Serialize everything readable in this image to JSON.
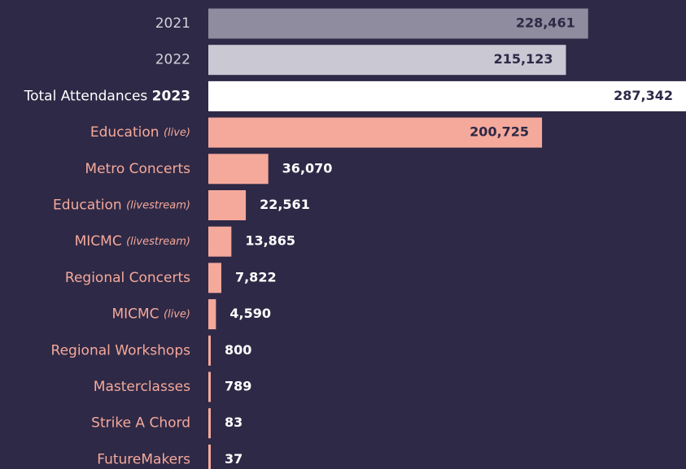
{
  "chart_data": {
    "type": "hbar",
    "categories": [
      "2021",
      "2022",
      "Total Attendances 2023",
      "Education (live)",
      "Metro Concerts",
      "Education (livestream)",
      "MICMC (livestream)",
      "Regional Concerts",
      "MICMC (live)",
      "Regional Workshops",
      "Masterclasses",
      "Strike A Chord",
      "FutureMakers"
    ],
    "values": [
      228461,
      215123,
      287342,
      200725,
      36070,
      22561,
      13865,
      7822,
      4590,
      800,
      789,
      83,
      37
    ],
    "value_labels": [
      "228,461",
      "215,123",
      "287,342",
      "200,725",
      "36,070",
      "22,561",
      "13,865",
      "7,822",
      "4,590",
      "800",
      "789",
      "83",
      "37"
    ],
    "colors": [
      "#8f8c9f",
      "#c9c8d3",
      "#ffffff",
      "#f5a99b",
      "#f5a99b",
      "#f5a99b",
      "#f5a99b",
      "#f5a99b",
      "#f5a99b",
      "#f5a99b",
      "#f5a99b",
      "#f5a99b",
      "#f5a99b"
    ],
    "label_colors": [
      "#d2d1da",
      "#d2d1da",
      "#ffffff",
      "#f5a99b",
      "#f5a99b",
      "#f5a99b",
      "#f5a99b",
      "#f5a99b",
      "#f5a99b",
      "#f5a99b",
      "#f5a99b",
      "#f5a99b",
      "#f5a99b"
    ]
  }
}
